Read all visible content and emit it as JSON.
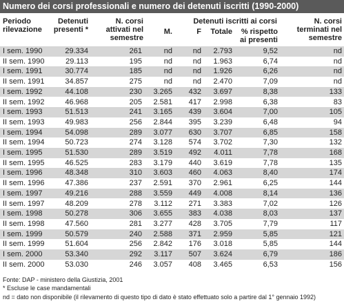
{
  "title": "Numero dei corsi professionali e numero dei detenuti iscritti (1990-2000)",
  "table": {
    "headers": {
      "period": "Periodo rilevazione",
      "present": "Detenuti presenti *",
      "courses": "N. corsi attivati nel semestre",
      "group": "Detenuti iscritti ai corsi",
      "m": "M.",
      "f": "F",
      "total": "Totale",
      "pct": "% rispetto ai presenti",
      "ended": "N. corsi terminati nel semestre"
    },
    "rows": [
      [
        "I sem. 1990",
        "29.334",
        "261",
        "nd",
        "nd",
        "2.793",
        "9,52",
        "nd"
      ],
      [
        "II sem. 1990",
        "29.113",
        "195",
        "nd",
        "nd",
        "1.963",
        "6,74",
        "nd"
      ],
      [
        "I sem. 1991",
        "30.774",
        "185",
        "nd",
        "nd",
        "1.926",
        "6,26",
        "nd"
      ],
      [
        "II sem. 1991",
        "34.857",
        "275",
        "nd",
        "nd",
        "2.470",
        "7,09",
        "nd"
      ],
      [
        "I sem. 1992",
        "44.108",
        "230",
        "3.265",
        "432",
        "3.697",
        "8,38",
        "133"
      ],
      [
        "II sem. 1992",
        "46.968",
        "205",
        "2.581",
        "417",
        "2.998",
        "6,38",
        "83"
      ],
      [
        "I sem. 1993",
        "51.513",
        "241",
        "3.165",
        "439",
        "3.604",
        "7,00",
        "105"
      ],
      [
        "II sem. 1993",
        "49.983",
        "256",
        "2.844",
        "395",
        "3.239",
        "6,48",
        "94"
      ],
      [
        "I sem. 1994",
        "54.098",
        "289",
        "3.077",
        "630",
        "3.707",
        "6,85",
        "158"
      ],
      [
        "II sem. 1994",
        "50.723",
        "274",
        "3.128",
        "574",
        "3.702",
        "7,30",
        "132"
      ],
      [
        "I sem. 1995",
        "51.530",
        "289",
        "3.519",
        "492",
        "4.011",
        "7,78",
        "168"
      ],
      [
        "II sem. 1995",
        "46.525",
        "283",
        "3.179",
        "440",
        "3.619",
        "7,78",
        "135"
      ],
      [
        "I sem. 1996",
        "48.348",
        "310",
        "3.603",
        "460",
        "4.063",
        "8,40",
        "174"
      ],
      [
        "II sem. 1996",
        "47.386",
        "237",
        "2.591",
        "370",
        "2.961",
        "6,25",
        "144"
      ],
      [
        "I sem. 1997",
        "49.216",
        "288",
        "3.559",
        "449",
        "4.008",
        "8,14",
        "136"
      ],
      [
        "II sem. 1997",
        "48.209",
        "278",
        "3.112",
        "271",
        "3.383",
        "7,02",
        "126"
      ],
      [
        "I sem. 1998",
        "50.278",
        "306",
        "3.655",
        "383",
        "4.038",
        "8,03",
        "137"
      ],
      [
        "II sem. 1998",
        "47.560",
        "281",
        "3.277",
        "428",
        "3.705",
        "7,79",
        "117"
      ],
      [
        "I sem. 1999",
        "50.579",
        "240",
        "2.588",
        "371",
        "2.959",
        "5,85",
        "121"
      ],
      [
        "II sem. 1999",
        "51.604",
        "256",
        "2.842",
        "176",
        "3.018",
        "5,85",
        "144"
      ],
      [
        "I sem. 2000",
        "53.340",
        "292",
        "3.117",
        "507",
        "3.624",
        "6,79",
        "186"
      ],
      [
        "II sem. 2000",
        "53.030",
        "246",
        "3.057",
        "408",
        "3.465",
        "6,53",
        "156"
      ]
    ]
  },
  "notes": [
    "Fonte: DAP - ministero della Giustizia, 2001",
    "* Escluse le case mandamentali",
    "nd = dato non disponibile (il rilevamento di questo tipo di dato è stato effettuato solo a partire dal 1° gennaio 1992)"
  ]
}
